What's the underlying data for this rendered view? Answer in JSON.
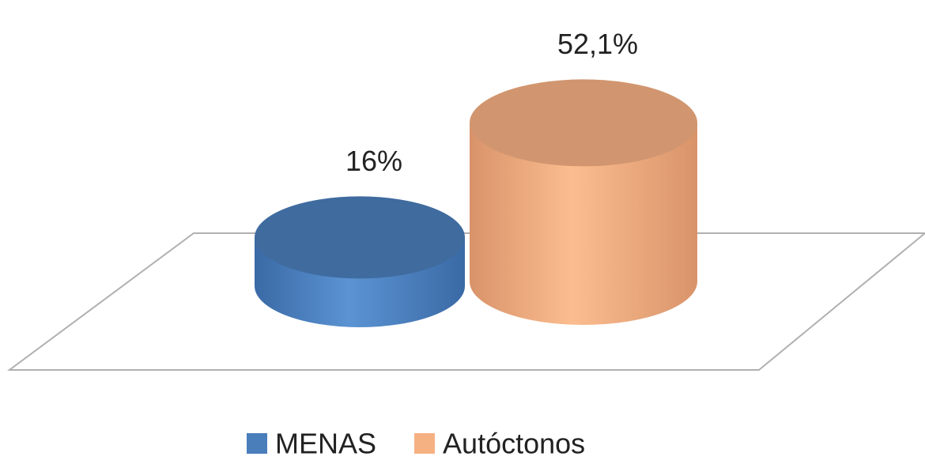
{
  "chart_data": {
    "type": "bar",
    "categories": [
      null
    ],
    "series": [
      {
        "name": "MENAS",
        "color": "#4a7ebb",
        "values": [
          16
        ],
        "value_labels": [
          "16%"
        ]
      },
      {
        "name": "Autóctonos",
        "color": "#f6b183",
        "values": [
          52.1
        ],
        "value_labels": [
          "52,1%"
        ]
      }
    ],
    "legend": "bottom"
  }
}
